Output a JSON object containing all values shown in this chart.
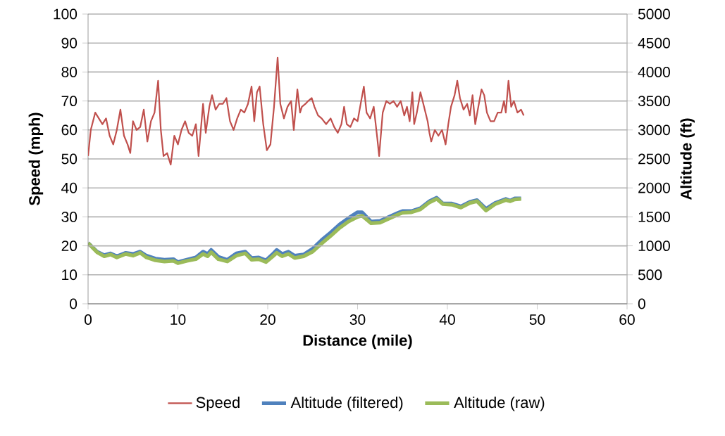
{
  "chart_data": {
    "type": "line",
    "xlabel": "Distance (mile)",
    "ylabel": "Speed (mph)",
    "y2label": "Altitude (ft)",
    "xlim": [
      0,
      60
    ],
    "xticks": [
      0,
      10,
      20,
      30,
      40,
      50,
      60
    ],
    "ylim": [
      0,
      100
    ],
    "yticks": [
      0,
      10,
      20,
      30,
      40,
      50,
      60,
      70,
      80,
      90,
      100
    ],
    "y2lim": [
      0,
      5000
    ],
    "y2ticks": [
      0,
      500,
      1000,
      1500,
      2000,
      2500,
      3000,
      3500,
      4000,
      4500,
      5000
    ],
    "grid": "y",
    "legend": "bottom",
    "marker": "none",
    "line_style": "solid",
    "series": [
      {
        "name": "Speed",
        "color": "#c0504d",
        "x": [
          0,
          0.3,
          0.8,
          1.2,
          1.6,
          2.0,
          2.4,
          2.8,
          3.2,
          3.6,
          4.0,
          4.4,
          4.7,
          5.0,
          5.4,
          5.8,
          6.2,
          6.6,
          7.0,
          7.4,
          7.8,
          8.1,
          8.4,
          8.8,
          9.2,
          9.6,
          10.0,
          10.4,
          10.8,
          11.2,
          11.6,
          12.0,
          12.3,
          12.8,
          13.1,
          13.5,
          13.8,
          14.2,
          14.6,
          15.0,
          15.4,
          15.8,
          16.2,
          16.6,
          17.0,
          17.4,
          17.8,
          18.2,
          18.5,
          18.8,
          19.1,
          19.5,
          19.9,
          20.3,
          20.7,
          21.1,
          21.4,
          21.8,
          22.2,
          22.6,
          22.9,
          23.3,
          23.6,
          23.8,
          24.2,
          24.5,
          24.9,
          25.2,
          25.6,
          26.0,
          26.5,
          27.0,
          27.4,
          27.8,
          28.2,
          28.5,
          28.8,
          29.2,
          29.6,
          30.0,
          30.4,
          30.7,
          31.0,
          31.4,
          31.8,
          32.2,
          32.4,
          32.8,
          33.2,
          33.6,
          34.0,
          34.4,
          34.8,
          35.2,
          35.5,
          35.8,
          36.1,
          36.3,
          36.6,
          37.0,
          37.4,
          37.8,
          38.0,
          38.2,
          38.6,
          39.0,
          39.4,
          39.8,
          40.1,
          40.4,
          40.8,
          41.1,
          41.4,
          41.8,
          42.2,
          42.5,
          42.8,
          43.1,
          43.5,
          43.8,
          44.1,
          44.4,
          44.8,
          45.2,
          45.6,
          46.0,
          46.3,
          46.5,
          46.8,
          47.1,
          47.4,
          47.8,
          48.2,
          48.5
        ],
        "values": [
          51,
          60,
          66,
          64,
          62,
          64,
          58,
          55,
          60,
          67,
          58,
          55,
          52,
          63,
          60,
          61,
          67,
          56,
          63,
          66,
          77,
          60,
          51,
          52,
          48,
          58,
          55,
          60,
          63,
          59,
          58,
          62,
          51,
          69,
          59,
          68,
          72,
          67,
          69,
          69,
          71,
          63,
          60,
          64,
          67,
          66,
          69,
          75,
          63,
          73,
          75,
          62,
          53,
          55,
          68,
          85,
          69,
          64,
          68,
          70,
          60,
          74,
          66,
          68,
          69,
          70,
          71,
          68,
          65,
          64,
          62,
          64,
          61,
          59,
          62,
          68,
          62,
          61,
          64,
          63,
          70,
          75,
          66,
          64,
          68,
          57,
          51,
          66,
          70,
          69,
          70,
          68,
          70,
          65,
          68,
          63,
          73,
          62,
          66,
          73,
          68,
          63,
          59,
          56,
          60,
          58,
          60,
          55,
          62,
          68,
          72,
          77,
          71,
          67,
          69,
          65,
          72,
          62,
          69,
          74,
          72,
          66,
          63,
          63,
          66,
          66,
          70,
          66,
          77,
          68,
          70,
          66,
          67,
          65
        ]
      },
      {
        "name": "Altitude (filtered)",
        "color": "#4f81bd",
        "axis": "y2",
        "x": [
          0,
          1,
          1.8,
          2.5,
          3.2,
          4.2,
          5,
          5.8,
          6.5,
          7.5,
          8.5,
          9.5,
          10,
          11,
          12,
          12.8,
          13.3,
          13.7,
          14.5,
          15.5,
          16.5,
          17.5,
          18.2,
          19,
          19.8,
          20.5,
          21,
          21.6,
          22.3,
          23,
          24,
          25,
          26,
          27,
          28,
          29,
          30,
          30.5,
          31.5,
          32.5,
          33.5,
          34.5,
          35,
          36,
          37,
          38,
          38.8,
          39.5,
          40.5,
          41.5,
          42.5,
          43.3,
          44.3,
          45.3,
          46.5,
          47,
          47.5,
          48.2
        ],
        "values": [
          1050,
          900,
          840,
          870,
          820,
          880,
          860,
          900,
          830,
          780,
          760,
          770,
          720,
          760,
          800,
          900,
          860,
          930,
          810,
          760,
          870,
          900,
          790,
          800,
          750,
          850,
          930,
          860,
          900,
          830,
          850,
          950,
          1100,
          1230,
          1370,
          1480,
          1580,
          1580,
          1420,
          1430,
          1500,
          1570,
          1600,
          1600,
          1650,
          1770,
          1830,
          1730,
          1730,
          1680,
          1760,
          1790,
          1640,
          1740,
          1810,
          1780,
          1820,
          1820
        ]
      },
      {
        "name": "Altitude (raw)",
        "color": "#9bbb59",
        "axis": "y2",
        "x": [
          0,
          1,
          1.8,
          2.5,
          3.2,
          4.2,
          5,
          5.8,
          6.5,
          7.5,
          8.5,
          9.5,
          10,
          11,
          12,
          12.8,
          13.3,
          13.7,
          14.5,
          15.5,
          16.5,
          17.5,
          18.2,
          19,
          19.8,
          20.5,
          21,
          21.6,
          22.3,
          23,
          24,
          25,
          26,
          27,
          28,
          29,
          30,
          30.5,
          31.5,
          32.5,
          33.5,
          34.5,
          35,
          36,
          37,
          38,
          38.8,
          39.5,
          40.5,
          41.5,
          42.5,
          43.3,
          44.3,
          45.3,
          46.5,
          47,
          47.5,
          48.2
        ],
        "values": [
          1050,
          890,
          820,
          850,
          800,
          860,
          830,
          880,
          800,
          750,
          730,
          740,
          700,
          740,
          770,
          860,
          820,
          890,
          770,
          730,
          830,
          870,
          760,
          770,
          720,
          810,
          880,
          820,
          860,
          790,
          820,
          900,
          1040,
          1170,
          1310,
          1420,
          1500,
          1520,
          1390,
          1400,
          1470,
          1540,
          1570,
          1580,
          1630,
          1750,
          1810,
          1720,
          1710,
          1660,
          1740,
          1770,
          1610,
          1720,
          1790,
          1770,
          1800,
          1810
        ]
      }
    ]
  }
}
